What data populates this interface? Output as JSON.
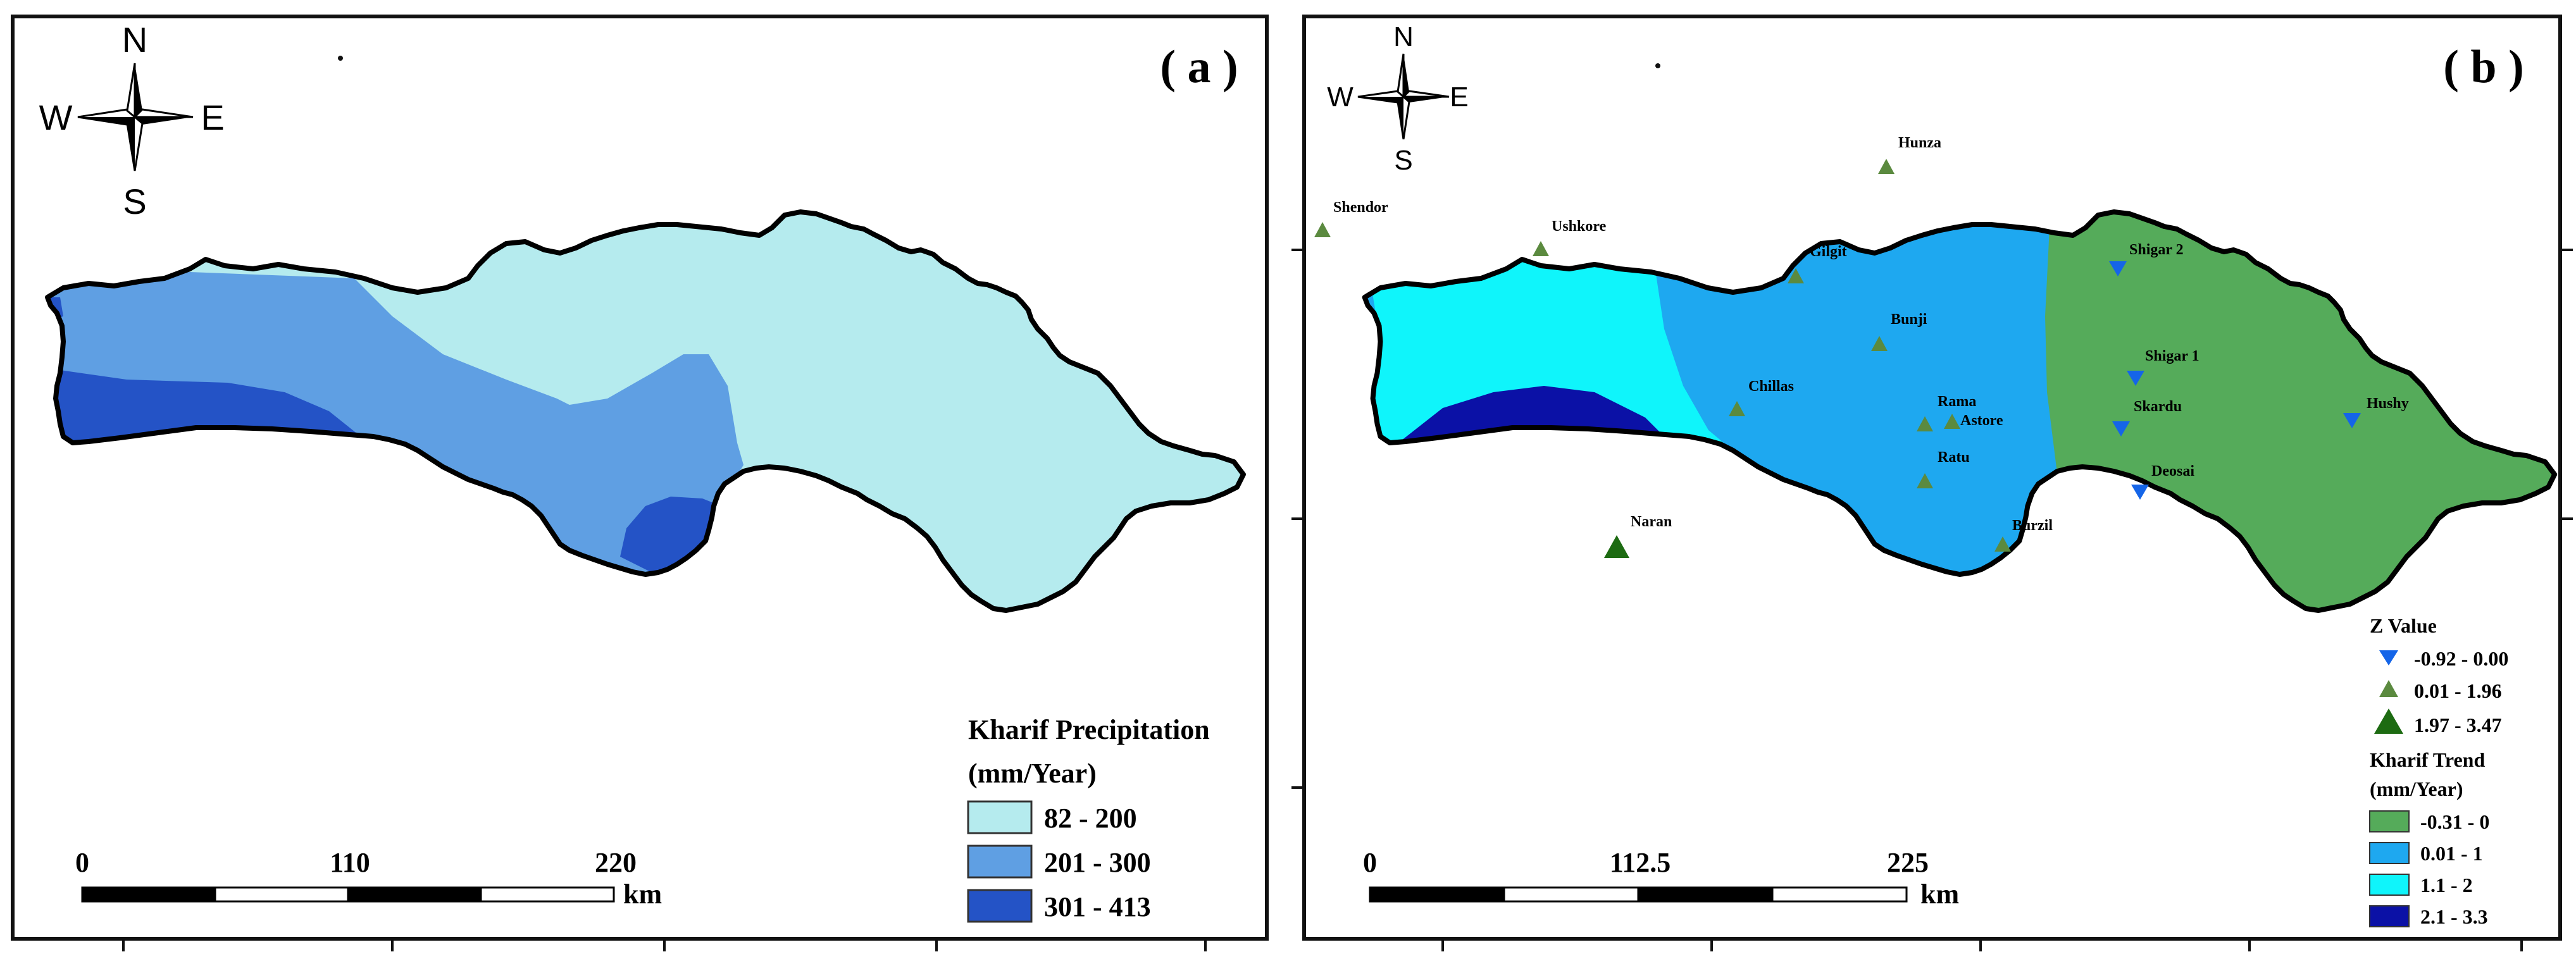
{
  "panel_a": {
    "label": "( a )",
    "compass": {
      "n": "N",
      "s": "S",
      "e": "E",
      "w": "W"
    },
    "legend": {
      "title_line1": "Kharif Precipitation",
      "title_line2": "(mm/Year)",
      "classes": [
        {
          "label": "82 - 200",
          "color": "#b5ebee"
        },
        {
          "label": "201 - 300",
          "color": "#5f9fe3"
        },
        {
          "label": "301 - 413",
          "color": "#2453c6"
        }
      ]
    },
    "scale": {
      "t0": "0",
      "t1": "110",
      "t2": "220",
      "unit": "km"
    }
  },
  "panel_b": {
    "label": "( b )",
    "compass": {
      "n": "N",
      "s": "S",
      "e": "E",
      "w": "W"
    },
    "z_legend": {
      "title": "Z Value",
      "classes": [
        {
          "label": "-0.92 - 0.00",
          "color": "#1565e8",
          "symbol": "triangle-down-small"
        },
        {
          "label": "0.01 - 1.96",
          "color": "#5b8a3f",
          "symbol": "triangle-up-small"
        },
        {
          "label": "1.97 - 3.47",
          "color": "#1d6b12",
          "symbol": "triangle-up-large"
        }
      ]
    },
    "trend_legend": {
      "title_line1": "Kharif Trend",
      "title_line2": "(mm/Year)",
      "classes": [
        {
          "label": "-0.31 - 0",
          "color": "#55ab5a"
        },
        {
          "label": "0.01 - 1",
          "color": "#1ea8f0"
        },
        {
          "label": "1.1 - 2",
          "color": "#0ff5fb"
        },
        {
          "label": "2.1 - 3.3",
          "color": "#0b11a6"
        }
      ]
    },
    "scale": {
      "t0": "0",
      "t1": "112.5",
      "t2": "225",
      "unit": "km"
    },
    "stations": [
      {
        "name": "Hunza",
        "z_class": 1
      },
      {
        "name": "Shendor",
        "z_class": 1
      },
      {
        "name": "Ushkore",
        "z_class": 1
      },
      {
        "name": "Gilgit",
        "z_class": 1
      },
      {
        "name": "Bunji",
        "z_class": 1
      },
      {
        "name": "Chillas",
        "z_class": 1
      },
      {
        "name": "Rama",
        "z_class": 1
      },
      {
        "name": "Astore",
        "z_class": 1
      },
      {
        "name": "Ratu",
        "z_class": 1
      },
      {
        "name": "Burzil",
        "z_class": 1
      },
      {
        "name": "Naran",
        "z_class": 2
      },
      {
        "name": "Shigar 2",
        "z_class": 0
      },
      {
        "name": "Shigar 1",
        "z_class": 0
      },
      {
        "name": "Skardu",
        "z_class": 0
      },
      {
        "name": "Hushy",
        "z_class": 0
      },
      {
        "name": "Deosai",
        "z_class": 0
      }
    ]
  }
}
